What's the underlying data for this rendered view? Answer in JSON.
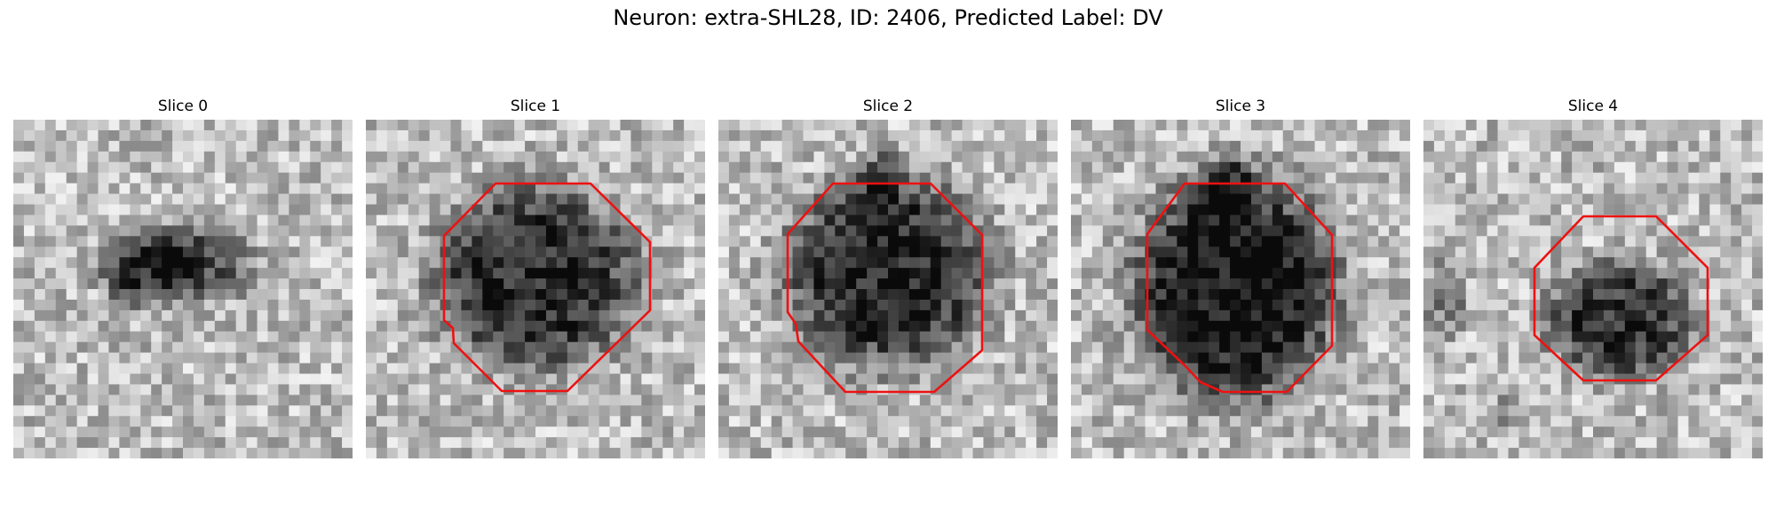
{
  "figure": {
    "title": "Neuron: extra-SHL28, ID: 2406, Predicted Label: DV"
  },
  "panels": [
    {
      "title": "Slice 0",
      "contour": false
    },
    {
      "title": "Slice 1",
      "contour": true
    },
    {
      "title": "Slice 2",
      "contour": true
    },
    {
      "title": "Slice 3",
      "contour": true
    },
    {
      "title": "Slice 4",
      "contour": true
    }
  ],
  "colors": {
    "contour": "#ee1111",
    "background": "#ffffff"
  },
  "colormap": "gray"
}
